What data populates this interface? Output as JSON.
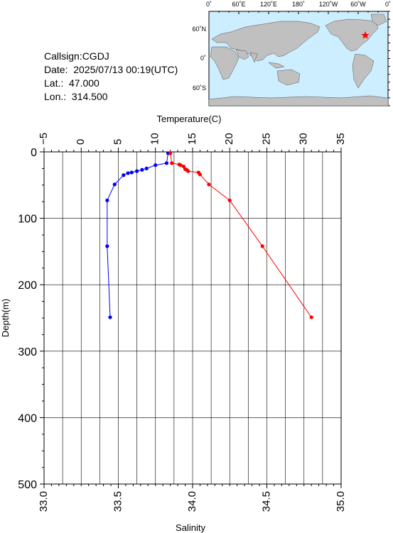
{
  "info": {
    "callsign": "Callsign:CGDJ",
    "date": "Date:  2025/07/13 00:19(UTC)",
    "lat": "Lat.:  47.000",
    "lon": "Lon.:  314.500"
  },
  "map": {
    "top_labels": [
      "0˚",
      "60˚E",
      "120˚E",
      "180˚",
      "120˚W",
      "60˚W",
      "0˚"
    ],
    "left_labels": [
      "60˚N",
      "0˚",
      "60˚S"
    ],
    "ocean_color": "#cceeff",
    "land_color": "#c0c0c0",
    "marker_color": "#ff0000",
    "marker": "star-icon"
  },
  "chart_data": {
    "type": "line",
    "top_axis_label": "Temperature(C)",
    "bottom_axis_label": "Salinity",
    "left_axis_label": "Depth(m)",
    "temperature_ticks": [
      "−5",
      "0",
      "5",
      "10",
      "15",
      "20",
      "25",
      "30",
      "35"
    ],
    "salinity_ticks": [
      "33.0",
      "33.5",
      "34.0",
      "34.5",
      "35.0"
    ],
    "depth_ticks": [
      "0",
      "100",
      "200",
      "300",
      "400",
      "500"
    ],
    "xlim_temperature": [
      -5,
      35
    ],
    "xlim_salinity": [
      33.0,
      35.0
    ],
    "ylim_depth": [
      0,
      500
    ],
    "grid": true,
    "series": [
      {
        "axis": "top",
        "color": "#0000ff",
        "x": [
          11.7,
          11.5,
          10.0,
          8.8,
          8.2,
          7.5,
          6.8,
          6.3,
          5.7,
          4.5,
          3.5,
          3.5,
          3.9
        ],
        "y": [
          2,
          17,
          20,
          25,
          27,
          29,
          31,
          32,
          35,
          49,
          73,
          142,
          249
        ]
      },
      {
        "axis": "bottom",
        "color": "#ff0000",
        "x": [
          33.85,
          33.86,
          33.91,
          33.92,
          33.94,
          33.95,
          33.96,
          33.97,
          34.04,
          34.05,
          34.11,
          34.25,
          34.47,
          34.8
        ],
        "y": [
          2,
          17,
          19,
          20,
          22,
          26,
          27,
          29,
          31,
          34,
          49,
          73,
          142,
          249
        ]
      }
    ]
  }
}
